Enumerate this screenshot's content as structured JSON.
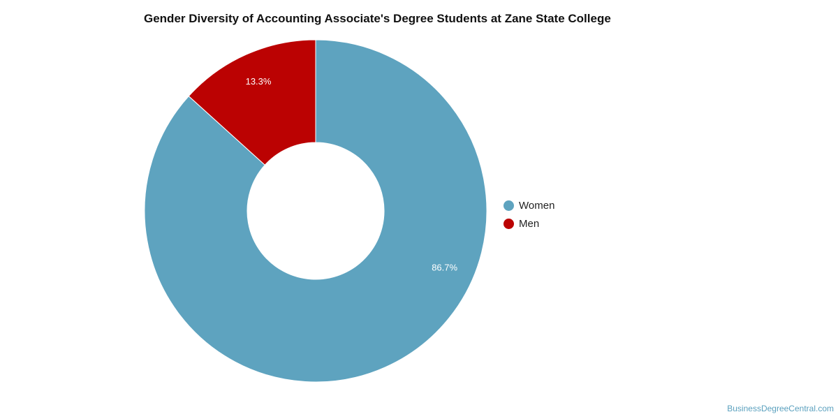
{
  "source_text": "BusinessDegreeCentral.com",
  "chart_data": {
    "type": "pie",
    "subtype": "donut",
    "title": "Gender Diversity of Accounting Associate's Degree Students at Zane State College",
    "legend_position": "right",
    "slices": [
      {
        "label": "Women",
        "value": 86.7,
        "display": "86.7%",
        "color": "#5ea3bf"
      },
      {
        "label": "Men",
        "value": 13.3,
        "display": "13.3%",
        "color": "#bb0202"
      }
    ]
  }
}
